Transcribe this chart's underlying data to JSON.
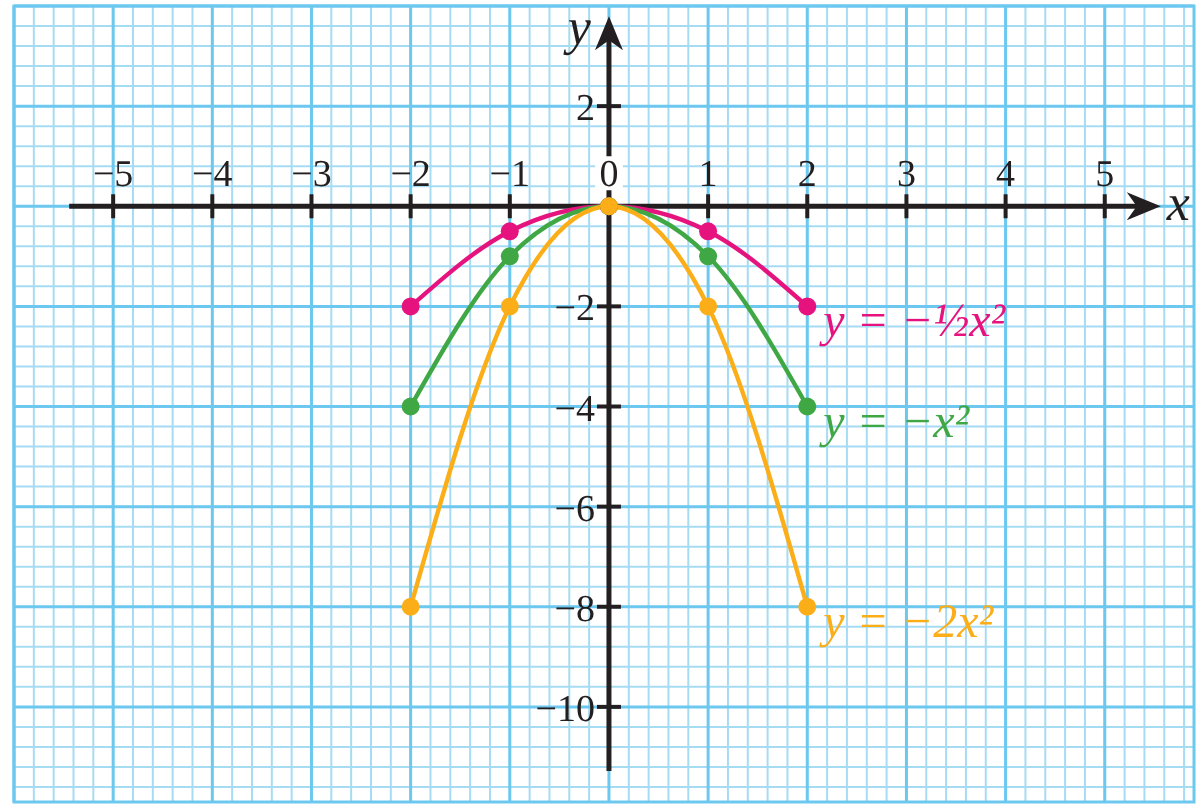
{
  "chart_data": {
    "type": "line",
    "xlabel": "x",
    "ylabel": "y",
    "x": [
      -2,
      -1,
      0,
      1,
      2
    ],
    "series": [
      {
        "name": "y = −½x²",
        "color": "#e6137f",
        "values": [
          -2,
          -0.5,
          0,
          -0.5,
          -2
        ]
      },
      {
        "name": "y = −x²",
        "color": "#3fa845",
        "values": [
          -4,
          -1,
          0,
          -1,
          -4
        ]
      },
      {
        "name": "y = −2x²",
        "color": "#fbae17",
        "values": [
          -8,
          -2,
          0,
          -2,
          -8
        ]
      }
    ],
    "xlim": [
      -6,
      5.9
    ],
    "ylim": [
      -11.9,
      4
    ],
    "xticks": [
      {
        "value": -5,
        "label": "−5"
      },
      {
        "value": -4,
        "label": "−4"
      },
      {
        "value": -3,
        "label": "−3"
      },
      {
        "value": -2,
        "label": "−2"
      },
      {
        "value": -1,
        "label": "−1"
      },
      0,
      1,
      2,
      3,
      4,
      5
    ],
    "yticks": [
      {
        "value": -10,
        "label": "−10"
      },
      {
        "value": -8,
        "label": "−8"
      },
      {
        "value": -6,
        "label": "−6"
      },
      {
        "value": -4,
        "label": "−4"
      },
      {
        "value": -2,
        "label": "−2"
      },
      2
    ],
    "grid": true,
    "legend": false,
    "marker": "circle",
    "line_style": "solid"
  }
}
